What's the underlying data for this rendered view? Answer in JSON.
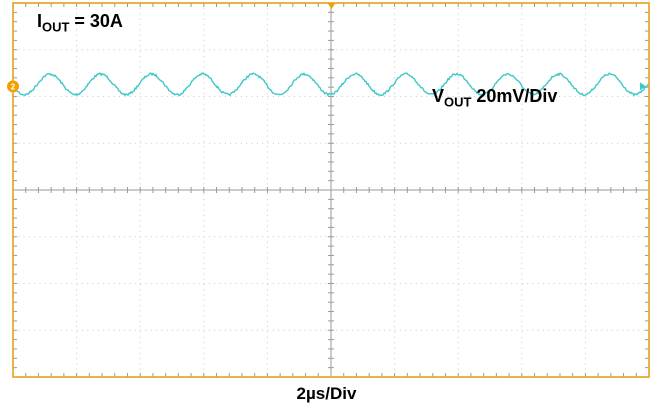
{
  "chart_data": {
    "type": "line",
    "title": "",
    "annotations": {
      "iout_main": "I",
      "iout_sub": "OUT",
      "iout_value": " = 30A",
      "vout_main": "V",
      "vout_sub": "OUT",
      "vout_scale": " 20mV/Div"
    },
    "xlabel": "2µs/Div",
    "ylabel": "",
    "x_divisions": 10,
    "y_divisions": 8,
    "xlim": [
      0,
      20
    ],
    "ylim": [
      -4,
      4
    ],
    "x_unit": "µs",
    "y_unit": "mV/div",
    "grid": true,
    "channel_marker": "2",
    "series": [
      {
        "channel": 2,
        "color": "#3ec8c8",
        "waveform": "sine",
        "offset_div": 2.26,
        "amplitude_div": 0.22,
        "cycles": 12.5,
        "phase": 3.3
      }
    ],
    "colors": {
      "border": "#e8a020",
      "grid": "#c8c8c8",
      "center_axis": "#9a9a9a",
      "trigger_marker": "#f0a000",
      "channel_marker": "#f0a000"
    }
  }
}
